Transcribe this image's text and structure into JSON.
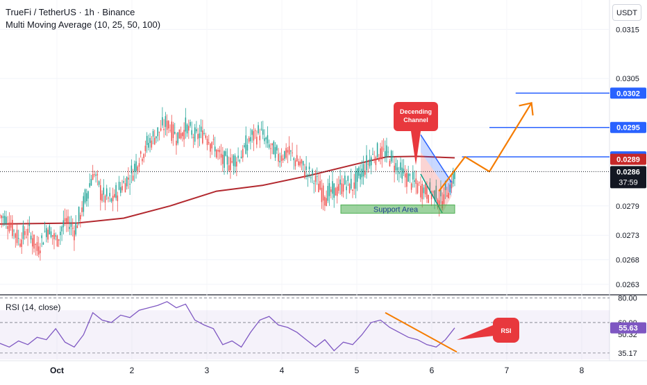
{
  "header": {
    "symbol_line": "TrueFi / TetherUS · 1h · Binance",
    "indicator_line": "Multi Moving Average (10, 25, 50, 100)",
    "currency": "USDT"
  },
  "chart_data": [
    {
      "type": "candlestick",
      "title": "TrueFi / TetherUS · 1h · Binance",
      "y_ticks": [
        "0.0315",
        "0.0305",
        "0.0295",
        "0.0289",
        "0.0279",
        "0.0273",
        "0.0268",
        "0.0263"
      ],
      "x_ticks": [
        "Oct",
        "2",
        "3",
        "4",
        "5",
        "6",
        "7",
        "8"
      ],
      "ylim": [
        0.0261,
        0.0321
      ],
      "price_path": [
        [
          0,
          0.0277
        ],
        [
          6,
          0.02755
        ],
        [
          12,
          0.0272
        ],
        [
          18,
          0.0274
        ],
        [
          24,
          0.027
        ],
        [
          30,
          0.02745
        ],
        [
          36,
          0.0272
        ],
        [
          42,
          0.0276
        ],
        [
          48,
          0.0274
        ],
        [
          54,
          0.02795
        ],
        [
          60,
          0.0286
        ],
        [
          66,
          0.0281
        ],
        [
          72,
          0.028
        ],
        [
          78,
          0.0283
        ],
        [
          84,
          0.0285
        ],
        [
          90,
          0.0289
        ],
        [
          96,
          0.0292
        ],
        [
          102,
          0.0294
        ],
        [
          108,
          0.0296
        ],
        [
          114,
          0.0293
        ],
        [
          120,
          0.0295
        ],
        [
          126,
          0.0293
        ],
        [
          132,
          0.0294
        ],
        [
          138,
          0.0291
        ],
        [
          144,
          0.0288
        ],
        [
          150,
          0.0288
        ],
        [
          156,
          0.02895
        ],
        [
          162,
          0.0293
        ],
        [
          168,
          0.0294
        ],
        [
          174,
          0.0291
        ],
        [
          180,
          0.0289
        ],
        [
          186,
          0.029
        ],
        [
          192,
          0.0288
        ],
        [
          198,
          0.0286
        ],
        [
          204,
          0.0284
        ],
        [
          210,
          0.0281
        ],
        [
          216,
          0.0282
        ],
        [
          222,
          0.02835
        ],
        [
          228,
          0.0283
        ],
        [
          234,
          0.0286
        ],
        [
          240,
          0.0289
        ],
        [
          246,
          0.029
        ],
        [
          252,
          0.0289
        ],
        [
          258,
          0.0286
        ],
        [
          264,
          0.02845
        ],
        [
          270,
          0.0283
        ],
        [
          276,
          0.0282
        ],
        [
          282,
          0.0281
        ],
        [
          285,
          0.028
        ],
        [
          288,
          0.0282
        ],
        [
          291,
          0.0283
        ],
        [
          294,
          0.0286
        ]
      ],
      "moving_average": [
        [
          0,
          0.02753
        ],
        [
          50,
          0.02755
        ],
        [
          80,
          0.02765
        ],
        [
          110,
          0.0279
        ],
        [
          140,
          0.0282
        ],
        [
          170,
          0.02832
        ],
        [
          200,
          0.02852
        ],
        [
          230,
          0.02875
        ],
        [
          250,
          0.0289
        ],
        [
          270,
          0.02891
        ],
        [
          294,
          0.02888
        ]
      ],
      "price_labels": [
        {
          "value": 0.0302,
          "text": "0.0302",
          "color": "#2962ff"
        },
        {
          "value": 0.0295,
          "text": "0.0295",
          "color": "#2962ff"
        },
        {
          "value": 0.0289,
          "text": "0.0289",
          "color": "#2962ff"
        },
        {
          "value": 0.02885,
          "text": "0.0289",
          "color": "#c62828"
        },
        {
          "value": 0.0286,
          "text": "0.0286",
          "countdown": "37:59",
          "color": "#131722"
        }
      ],
      "levels": [
        {
          "value": 0.0302,
          "from_frac": 0.846,
          "to_frac": 0.945,
          "color": "#2962ff"
        },
        {
          "value": 0.0295,
          "from_frac": 0.803,
          "to_frac": 0.945,
          "color": "#2962ff"
        },
        {
          "value": 0.0289,
          "from_frac": 0.758,
          "to_frac": 0.945,
          "color": "#2962ff"
        }
      ],
      "projection": [
        [
          0.72,
          0.0282
        ],
        [
          0.763,
          0.0289
        ],
        [
          0.803,
          0.0286
        ],
        [
          0.872,
          0.03
        ]
      ],
      "annotations": {
        "channel_label": "Decending\nChannel",
        "support_label": "Support Area",
        "support_range": [
          0.02775,
          0.02792
        ]
      }
    },
    {
      "type": "line",
      "title": "RSI (14, close)",
      "y_ticks": [
        "80.00",
        "60.00",
        "50.32",
        "35.17"
      ],
      "current_value": "55.63",
      "ylim": [
        30,
        82
      ],
      "bands": [
        30,
        70
      ],
      "values": [
        [
          0,
          43
        ],
        [
          6,
          40
        ],
        [
          12,
          45
        ],
        [
          18,
          42
        ],
        [
          24,
          48
        ],
        [
          30,
          46
        ],
        [
          36,
          55
        ],
        [
          42,
          44
        ],
        [
          48,
          40
        ],
        [
          54,
          50
        ],
        [
          60,
          68
        ],
        [
          66,
          62
        ],
        [
          72,
          60
        ],
        [
          78,
          66
        ],
        [
          84,
          64
        ],
        [
          90,
          70
        ],
        [
          96,
          72
        ],
        [
          102,
          74
        ],
        [
          108,
          77
        ],
        [
          114,
          72
        ],
        [
          120,
          75
        ],
        [
          126,
          62
        ],
        [
          132,
          58
        ],
        [
          138,
          55
        ],
        [
          144,
          42
        ],
        [
          150,
          45
        ],
        [
          156,
          40
        ],
        [
          162,
          52
        ],
        [
          168,
          62
        ],
        [
          174,
          65
        ],
        [
          180,
          58
        ],
        [
          186,
          56
        ],
        [
          192,
          52
        ],
        [
          198,
          46
        ],
        [
          204,
          40
        ],
        [
          210,
          46
        ],
        [
          216,
          37
        ],
        [
          222,
          44
        ],
        [
          228,
          42
        ],
        [
          234,
          50
        ],
        [
          240,
          60
        ],
        [
          246,
          62
        ],
        [
          252,
          56
        ],
        [
          258,
          52
        ],
        [
          264,
          48
        ],
        [
          270,
          46
        ],
        [
          276,
          42
        ],
        [
          282,
          40
        ],
        [
          288,
          46
        ],
        [
          294,
          55.6
        ]
      ],
      "annotation": "RSI"
    }
  ]
}
